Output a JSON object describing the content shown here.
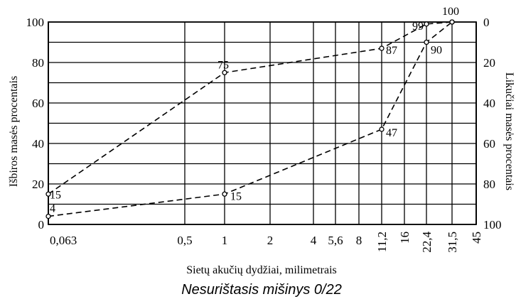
{
  "chart_data": {
    "type": "line",
    "title": "",
    "caption": "Nesurištasis mišinys 0/22",
    "xlabel": "Sietų akučių dydžiai, milimetrais",
    "ylabel_left": "Išbiros masės procentais",
    "ylabel_right": "Likučiai masės procentais",
    "x_categories": [
      "0,063",
      "0,5",
      "1",
      "2",
      "4",
      "5,6",
      "8",
      "11,2",
      "16",
      "22,4",
      "31,5",
      "45"
    ],
    "x_sieve_mm": [
      0.063,
      0.5,
      1,
      2,
      4,
      5.6,
      8,
      11.2,
      16,
      22.4,
      31.5,
      45
    ],
    "ylim_left": [
      0,
      100
    ],
    "yticks_left": [
      "0",
      "20",
      "40",
      "60",
      "80",
      "100"
    ],
    "ylim_right": [
      100,
      0
    ],
    "yticks_right": [
      "100",
      "80",
      "60",
      "40",
      "20",
      "0"
    ],
    "grid": true,
    "series": [
      {
        "line_style": "dashed",
        "points": [
          {
            "x": 0.063,
            "y": 15,
            "label": "15"
          },
          {
            "x": 1,
            "y": 75,
            "label": "75"
          },
          {
            "x": 11.2,
            "y": 87,
            "label": "87"
          },
          {
            "x": 22.4,
            "y": 99,
            "label": "99"
          },
          {
            "x": 31.5,
            "y": 100,
            "label": "100"
          }
        ]
      },
      {
        "line_style": "dashed",
        "points": [
          {
            "x": 0.063,
            "y": 4,
            "label": "4"
          },
          {
            "x": 1,
            "y": 15,
            "label": "15"
          },
          {
            "x": 11.2,
            "y": 47,
            "label": "47"
          },
          {
            "x": 22.4,
            "y": 90,
            "label": "90"
          },
          {
            "x": 31.5,
            "y": 100,
            "label": ""
          }
        ]
      }
    ]
  }
}
